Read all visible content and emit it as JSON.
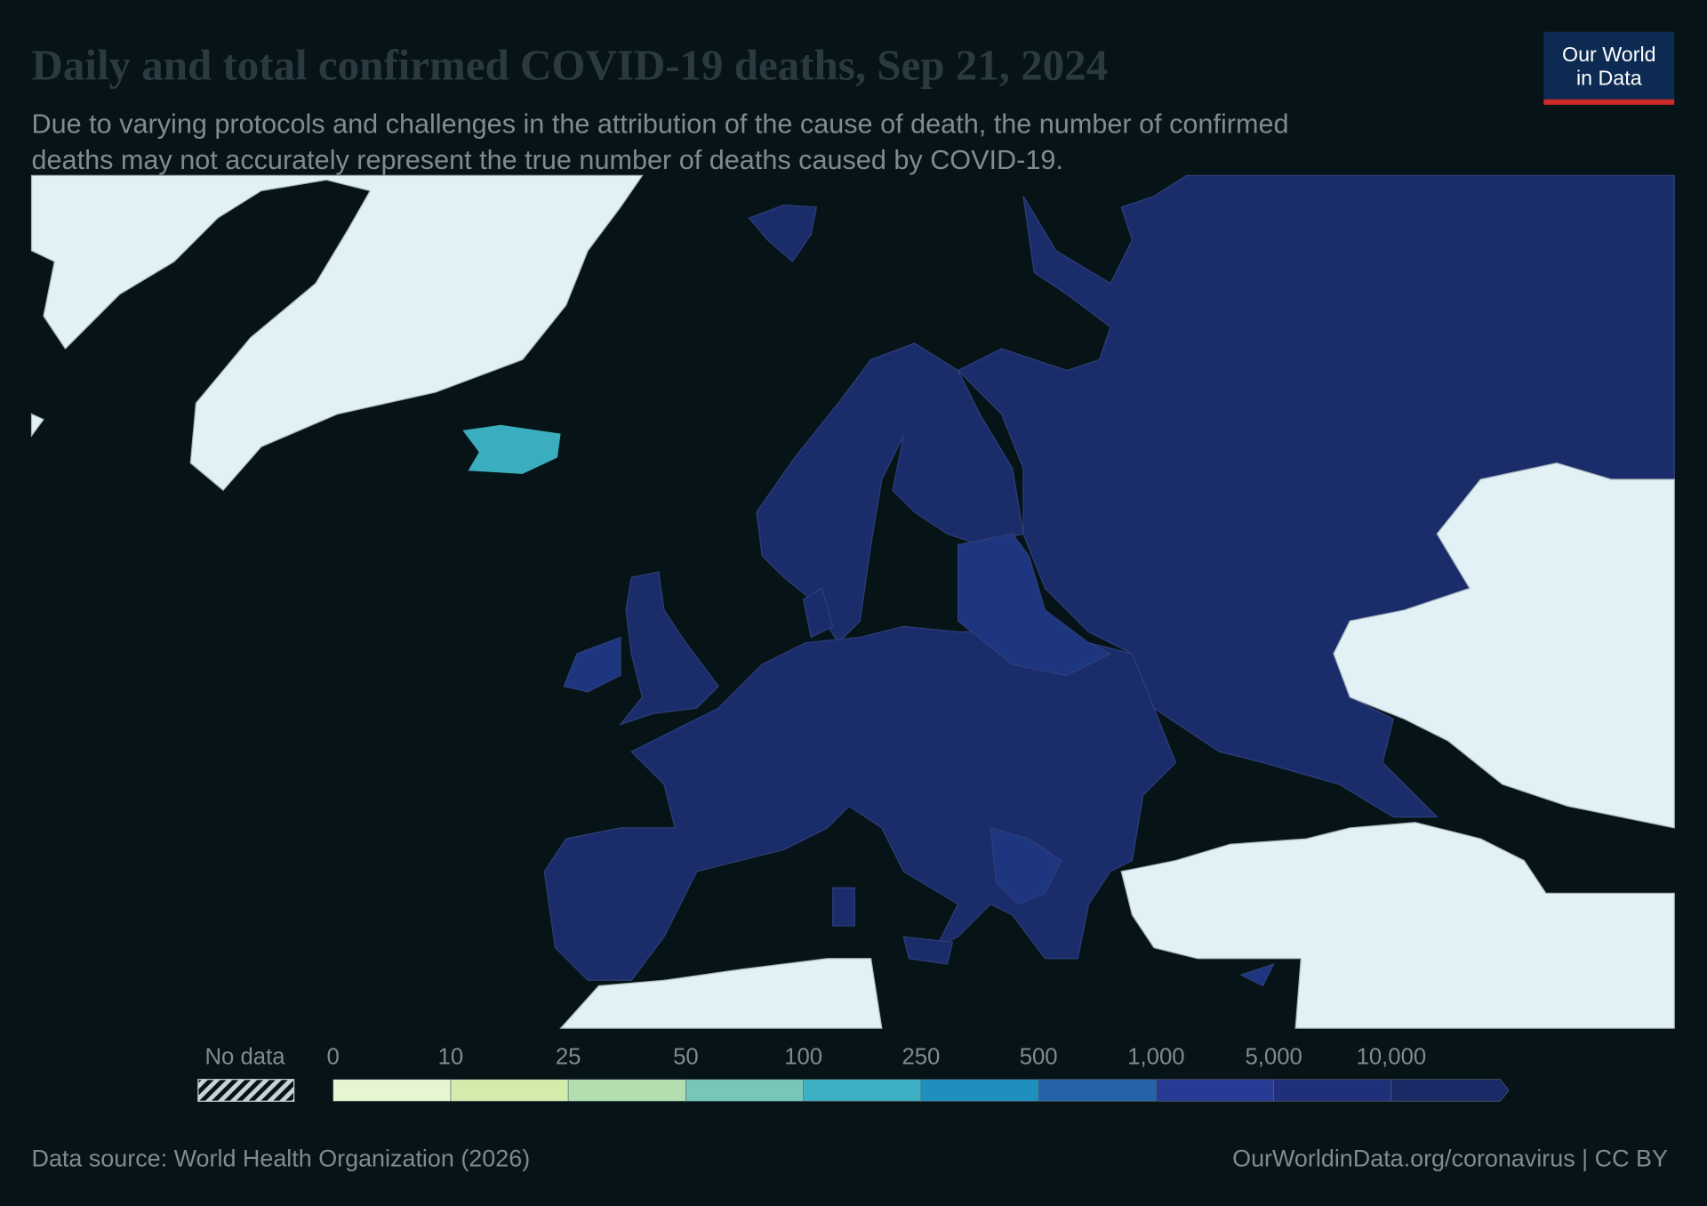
{
  "header": {
    "title": "Daily and total confirmed COVID-19 deaths, Sep 21, 2024",
    "subtitle_lines": [
      "Due to varying protocols and challenges in the attribution of the cause of death, the number of confirmed",
      "deaths may not accurately represent the true number of deaths caused by COVID-19."
    ],
    "logo_lines": [
      "Our World",
      "in Data"
    ]
  },
  "legend": {
    "no_data": "No data",
    "labels": [
      "0",
      "10",
      "25",
      "50",
      "100",
      "250",
      "500",
      "1,000",
      "5,000",
      "10,000"
    ],
    "colors": [
      "#e6f5d2",
      "#d3ecac",
      "#b2deb0",
      "#76c7b8",
      "#3eb0c4",
      "#1f8fc0",
      "#2463a8",
      "#283b94",
      "#1f2f7a",
      "#192a66"
    ]
  },
  "footer": {
    "source": "Data source: World Health Organization (2026)",
    "license": "OurWorldinData.org/coronavirus | CC BY"
  }
}
